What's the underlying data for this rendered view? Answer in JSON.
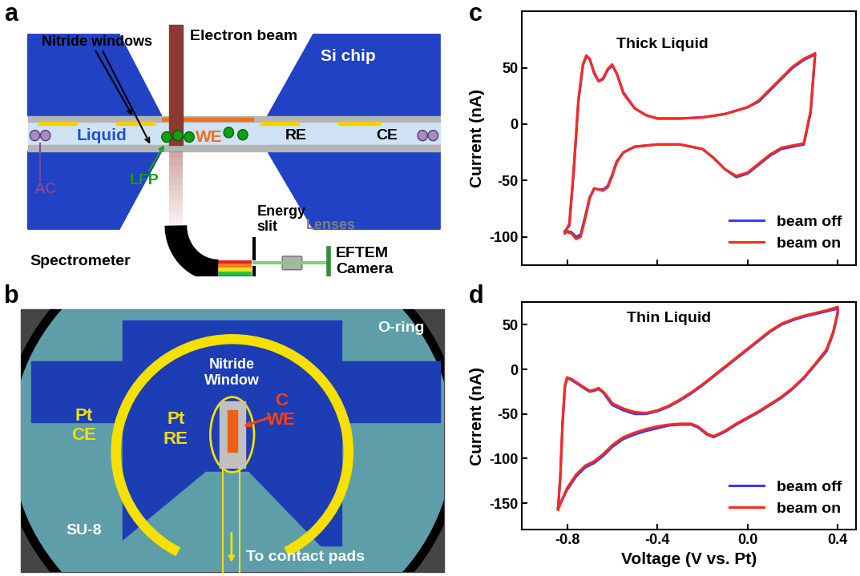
{
  "panel_labels": [
    "a",
    "b",
    "c",
    "d"
  ],
  "diagram_a": {
    "nitride_windows": "Nitride windows",
    "electron_beam": "Electron beam",
    "si_chip": "Si chip",
    "liquid": "Liquid",
    "we": "WE",
    "re": "RE",
    "ce": "CE",
    "lfp": "LFP",
    "ac": "AC",
    "spectrometer": "Spectrometer",
    "energy_slit": "Energy\nslit",
    "lenses": "Lenses",
    "camera": "EFTEM\nCamera"
  },
  "diagram_b": {
    "o_ring": "O-ring",
    "nitride_window": "Nitride\nWindow",
    "pt_ce": "Pt\nCE",
    "pt_re": "Pt\nRE",
    "c_we": "C\nWE",
    "su8": "SU-8",
    "contact_pads": "To contact pads"
  },
  "chart_data": [
    {
      "type": "line",
      "title": "Thick Liquid",
      "y_label": "Current (nA)",
      "x": [
        -0.81,
        -0.79,
        -0.77,
        -0.75,
        -0.73,
        -0.715,
        -0.7,
        -0.68,
        -0.66,
        -0.64,
        -0.62,
        -0.6,
        -0.58,
        -0.55,
        -0.5,
        -0.45,
        -0.4,
        -0.3,
        -0.2,
        -0.1,
        0.0,
        0.05,
        0.1,
        0.15,
        0.2,
        0.25,
        0.3,
        0.3,
        0.28,
        0.25,
        0.2,
        0.15,
        0.1,
        0.05,
        0.0,
        -0.05,
        -0.1,
        -0.15,
        -0.2,
        -0.3,
        -0.4,
        -0.5,
        -0.55,
        -0.58,
        -0.6,
        -0.62,
        -0.64,
        -0.66,
        -0.68,
        -0.7,
        -0.72,
        -0.74,
        -0.76,
        -0.78,
        -0.8,
        -0.81
      ],
      "series": [
        {
          "name": "beam off",
          "color": "#3a3aff",
          "values": [
            -95,
            -90,
            -40,
            20,
            52,
            60,
            58,
            45,
            38,
            40,
            48,
            52,
            45,
            28,
            14,
            8,
            5,
            5,
            6,
            9,
            15,
            20,
            30,
            40,
            50,
            57,
            62,
            62,
            10,
            -18,
            -20,
            -22,
            -28,
            -36,
            -44,
            -47,
            -40,
            -30,
            -22,
            -18,
            -18,
            -20,
            -25,
            -33,
            -45,
            -55,
            -58,
            -58,
            -57,
            -65,
            -82,
            -98,
            -100,
            -96,
            -95,
            -95
          ]
        },
        {
          "name": "beam on",
          "color": "#ff2a1a",
          "values": [
            -97,
            -88,
            -38,
            22,
            53,
            61,
            58,
            46,
            38,
            41,
            49,
            53,
            45,
            27,
            14,
            8,
            5,
            5,
            6,
            9,
            15,
            21,
            31,
            41,
            51,
            58,
            63,
            63,
            12,
            -17,
            -19,
            -21,
            -27,
            -35,
            -43,
            -46,
            -40,
            -30,
            -22,
            -18,
            -18,
            -20,
            -25,
            -34,
            -46,
            -56,
            -59,
            -58,
            -57,
            -66,
            -84,
            -100,
            -102,
            -97,
            -96,
            -96
          ]
        }
      ],
      "xlim": [
        -1.0,
        0.48
      ],
      "ylim": [
        -125,
        100
      ],
      "xticks": [
        -0.8,
        -0.4,
        0.0,
        0.4
      ],
      "yticks": [
        -100,
        -50,
        0,
        50
      ],
      "legend": "lower right",
      "tick_labels": "y"
    },
    {
      "type": "line",
      "title": "Thin Liquid",
      "x_label": "Voltage (V vs. Pt)",
      "y_label": "Current (nA)",
      "x": [
        -0.84,
        -0.83,
        -0.82,
        -0.81,
        -0.8,
        -0.78,
        -0.75,
        -0.72,
        -0.7,
        -0.68,
        -0.66,
        -0.64,
        -0.62,
        -0.6,
        -0.55,
        -0.5,
        -0.45,
        -0.4,
        -0.35,
        -0.3,
        -0.25,
        -0.2,
        -0.15,
        -0.1,
        -0.05,
        0.0,
        0.05,
        0.1,
        0.15,
        0.2,
        0.25,
        0.3,
        0.35,
        0.4,
        0.4,
        0.38,
        0.35,
        0.3,
        0.25,
        0.2,
        0.15,
        0.1,
        0.05,
        0.0,
        -0.05,
        -0.1,
        -0.15,
        -0.18,
        -0.22,
        -0.25,
        -0.3,
        -0.35,
        -0.4,
        -0.45,
        -0.5,
        -0.55,
        -0.6,
        -0.64,
        -0.68,
        -0.72,
        -0.76,
        -0.8,
        -0.84
      ],
      "series": [
        {
          "name": "beam off",
          "color": "#3a3aff",
          "values": [
            -155,
            -120,
            -60,
            -20,
            -10,
            -12,
            -17,
            -22,
            -25,
            -24,
            -22,
            -26,
            -33,
            -40,
            -46,
            -50,
            -50,
            -47,
            -42,
            -35,
            -27,
            -18,
            -8,
            2,
            12,
            22,
            32,
            42,
            50,
            55,
            59,
            62,
            65,
            68,
            62,
            40,
            20,
            5,
            -10,
            -22,
            -32,
            -40,
            -48,
            -55,
            -62,
            -70,
            -76,
            -73,
            -65,
            -62,
            -62,
            -63,
            -66,
            -69,
            -73,
            -78,
            -87,
            -97,
            -105,
            -110,
            -120,
            -135,
            -155
          ]
        },
        {
          "name": "beam on",
          "color": "#ff2a1a",
          "values": [
            -157,
            -118,
            -58,
            -18,
            -9,
            -11,
            -16,
            -21,
            -24,
            -23,
            -21,
            -25,
            -31,
            -38,
            -44,
            -48,
            -49,
            -46,
            -41,
            -34,
            -26,
            -17,
            -7,
            3,
            13,
            23,
            33,
            43,
            51,
            56,
            60,
            63,
            66,
            70,
            64,
            42,
            22,
            6,
            -9,
            -21,
            -31,
            -39,
            -47,
            -54,
            -61,
            -69,
            -75,
            -72,
            -64,
            -61,
            -61,
            -62,
            -64,
            -67,
            -71,
            -76,
            -85,
            -95,
            -103,
            -108,
            -118,
            -133,
            -157
          ]
        }
      ],
      "xlim": [
        -1.0,
        0.48
      ],
      "ylim": [
        -180,
        75
      ],
      "xticks": [
        -0.8,
        -0.4,
        0.0,
        0.4
      ],
      "yticks": [
        -150,
        -100,
        -50,
        0,
        50
      ],
      "legend": "lower right"
    }
  ]
}
